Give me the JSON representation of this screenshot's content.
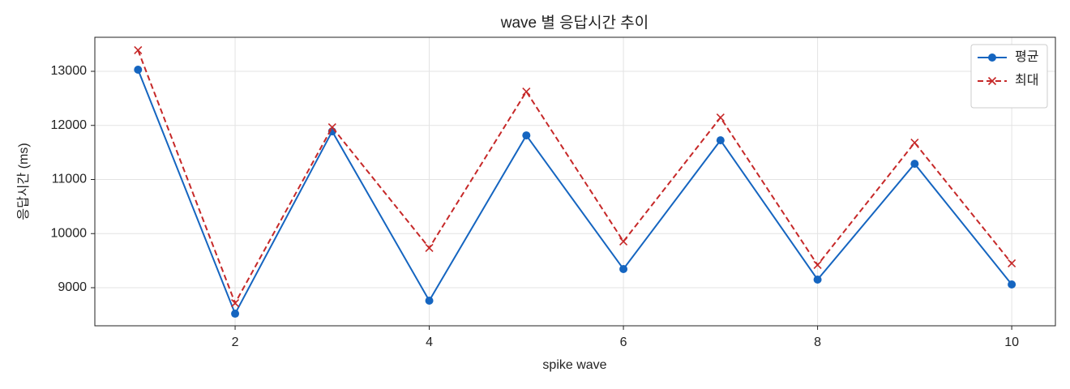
{
  "chart_data": {
    "type": "line",
    "title": "wave 별 응답시간 추이",
    "x_label": "spike wave",
    "y_label": "응답시간 (ms)",
    "x": [
      1,
      2,
      3,
      4,
      5,
      6,
      7,
      8,
      9,
      10
    ],
    "series": [
      {
        "name": "평균",
        "color": "#1565c0",
        "marker": "o",
        "linestyle": "solid",
        "values": [
          13030,
          8520,
          11890,
          8760,
          11815,
          9345,
          11725,
          9150,
          11290,
          9060
        ]
      },
      {
        "name": "최대",
        "color": "#c62828",
        "marker": "x",
        "linestyle": "dashed",
        "values": [
          13390,
          8715,
          11965,
          9735,
          12625,
          9855,
          12145,
          9420,
          11680,
          9450
        ]
      }
    ],
    "xlim": [
      0.555,
      10.45
    ],
    "xticks": [
      2,
      4,
      6,
      8,
      10
    ],
    "ylim": [
      8296,
      13629
    ],
    "yticks": [
      9000,
      10000,
      11000,
      12000,
      13000
    ],
    "grid": true,
    "legend": "upper right"
  }
}
